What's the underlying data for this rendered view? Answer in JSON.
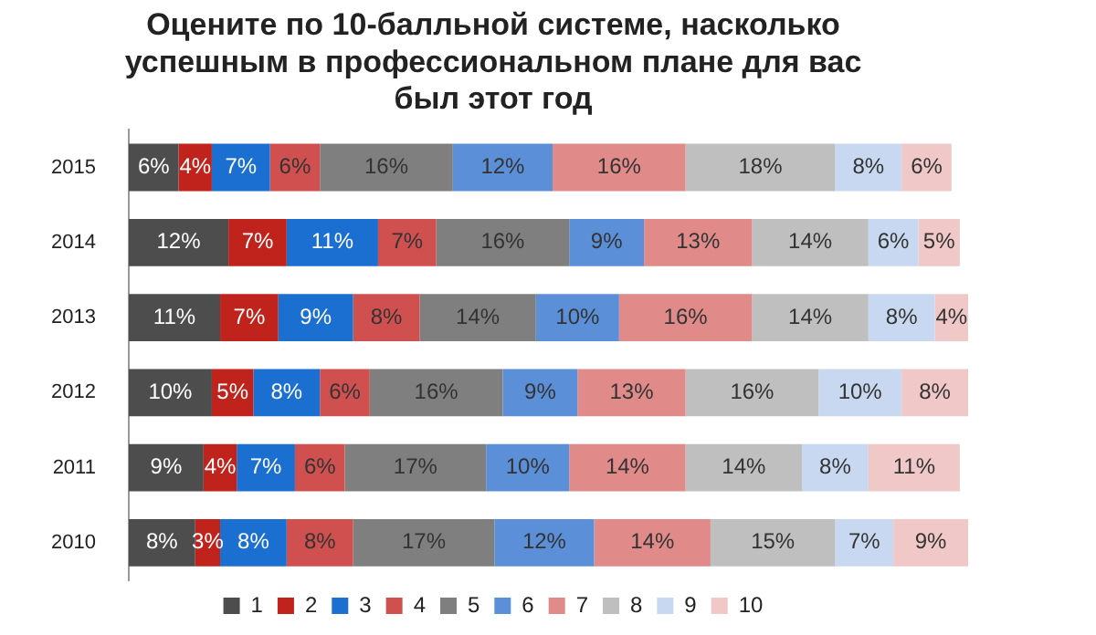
{
  "chart_data": {
    "type": "bar",
    "orientation": "horizontal",
    "stacked": true,
    "title": "Оцените по 10-балльной системе, насколько успешным в профессиональном плане для вас был этот год",
    "categories": [
      "2015",
      "2014",
      "2013",
      "2012",
      "2011",
      "2010"
    ],
    "legend": "bottom",
    "grid": false,
    "series": [
      {
        "name": "1",
        "color": "#4d4d4d",
        "values": [
          6,
          12,
          11,
          10,
          9,
          8
        ],
        "value_labels": [
          "6%",
          "12%",
          "11%",
          "10%",
          "9%",
          "8%"
        ]
      },
      {
        "name": "2",
        "color": "#c0231c",
        "values": [
          4,
          7,
          7,
          5,
          4,
          3
        ],
        "value_labels": [
          "4%",
          "7%",
          "7%",
          "5%",
          "4%",
          "3%"
        ]
      },
      {
        "name": "3",
        "color": "#1a6fd0",
        "values": [
          7,
          11,
          9,
          8,
          7,
          8
        ],
        "value_labels": [
          "7%",
          "11%",
          "9%",
          "8%",
          "7%",
          "8%"
        ]
      },
      {
        "name": "4",
        "color": "#d05050",
        "values": [
          6,
          7,
          8,
          6,
          6,
          8
        ],
        "value_labels": [
          "6%",
          "7%",
          "8%",
          "6%",
          "6%",
          "8%"
        ]
      },
      {
        "name": "5",
        "color": "#7f7f7f",
        "values": [
          16,
          16,
          14,
          16,
          17,
          17
        ],
        "value_labels": [
          "16%",
          "16%",
          "14%",
          "16%",
          "17%",
          "17%"
        ]
      },
      {
        "name": "6",
        "color": "#5b8fd8",
        "values": [
          12,
          9,
          10,
          9,
          10,
          12
        ],
        "value_labels": [
          "12%",
          "9%",
          "10%",
          "9%",
          "10%",
          "12%"
        ]
      },
      {
        "name": "7",
        "color": "#e08a8a",
        "values": [
          16,
          13,
          16,
          13,
          14,
          14
        ],
        "value_labels": [
          "16%",
          "13%",
          "16%",
          "13%",
          "14%",
          "14%"
        ]
      },
      {
        "name": "8",
        "color": "#bfbfbf",
        "values": [
          18,
          14,
          14,
          16,
          14,
          15
        ],
        "value_labels": [
          "18%",
          "14%",
          "14%",
          "16%",
          "14%",
          "15%"
        ]
      },
      {
        "name": "9",
        "color": "#c8d8f0",
        "values": [
          8,
          6,
          8,
          10,
          8,
          7
        ],
        "value_labels": [
          "8%",
          "6%",
          "8%",
          "10%",
          "8%",
          "7%"
        ]
      },
      {
        "name": "10",
        "color": "#f0c8c8",
        "values": [
          6,
          5,
          4,
          8,
          11,
          9
        ],
        "value_labels": [
          "6%",
          "5%",
          "4%",
          "8%",
          "11%",
          "9%"
        ]
      }
    ]
  }
}
